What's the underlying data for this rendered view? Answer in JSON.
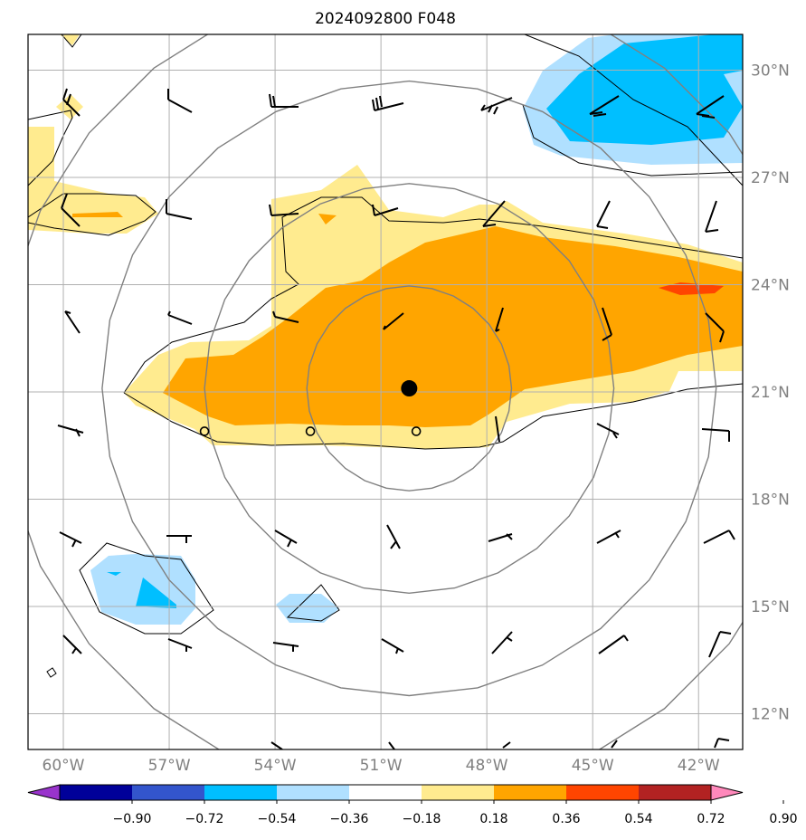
{
  "title": "2024092800 F048",
  "map": {
    "lon_min": -61,
    "lon_max": -40.75,
    "lat_min": 11,
    "lat_max": 31,
    "lon_ticks": [
      {
        "value": -60,
        "label": "60°W"
      },
      {
        "value": -57,
        "label": "57°W"
      },
      {
        "value": -54,
        "label": "54°W"
      },
      {
        "value": -51,
        "label": "51°W"
      },
      {
        "value": -48,
        "label": "48°W"
      },
      {
        "value": -45,
        "label": "45°W"
      },
      {
        "value": -42,
        "label": "42°W"
      }
    ],
    "lat_ticks": [
      {
        "value": 30,
        "label": "30°N"
      },
      {
        "value": 27,
        "label": "27°N"
      },
      {
        "value": 24,
        "label": "24°N"
      },
      {
        "value": 21,
        "label": "21°N"
      },
      {
        "value": 18,
        "label": "18°N"
      },
      {
        "value": 15,
        "label": "15°N"
      },
      {
        "value": 12,
        "label": "12°N"
      }
    ],
    "grid": true,
    "storm_center": {
      "lon": -50.2,
      "lat": 21.1
    },
    "range_rings_deg": [
      2.9,
      5.8,
      8.7,
      11.6
    ],
    "small_circles": [
      {
        "lon": -56.0,
        "lat": 19.9
      },
      {
        "lon": -53.0,
        "lat": 19.9
      },
      {
        "lon": -50.0,
        "lat": 19.9
      }
    ]
  },
  "colorbar": {
    "ticks": [
      "−0.90",
      "−0.72",
      "−0.54",
      "−0.36",
      "−0.18",
      "0.18",
      "0.36",
      "0.54",
      "0.72",
      "0.90"
    ],
    "colors": [
      "#9933cc",
      "#000099",
      "#3355cc",
      "#00bfff",
      "#b0e0ff",
      "#ffffff",
      "#ffeb8f",
      "#ffa500",
      "#ff4500",
      "#b22222",
      "#ff88bb"
    ]
  }
}
